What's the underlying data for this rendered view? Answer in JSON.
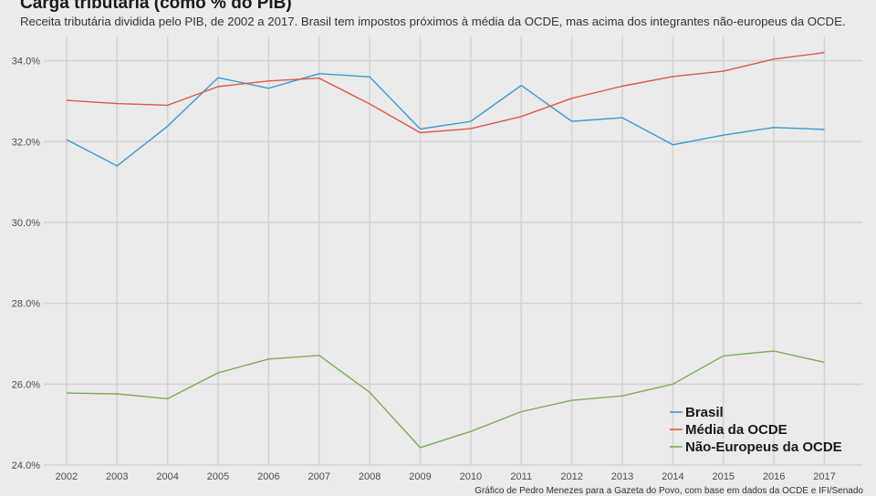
{
  "chart_data": {
    "type": "line",
    "title": "Carga tributária (como % do PIB)",
    "subtitle": "Receita tributária dividida pelo PIB, de 2002 a 2017. Brasil tem impostos próximos à média da OCDE, mas acima dos integrantes não-europeus da OCDE.",
    "caption": "Gráfico de Pedro Menezes para a Gazeta do Povo, com base em dados da OCDE e IFI/Senado",
    "xlabel": "",
    "ylabel": "",
    "x": [
      2002,
      2003,
      2004,
      2005,
      2006,
      2007,
      2008,
      2009,
      2010,
      2011,
      2012,
      2013,
      2014,
      2015,
      2016,
      2017
    ],
    "x_tick_labels": [
      "2002",
      "2003",
      "2004",
      "2005",
      "2006",
      "2007",
      "2008",
      "2009",
      "2010",
      "2011",
      "2012",
      "2013",
      "2014",
      "2015",
      "2016",
      "2017"
    ],
    "y_ticks": [
      24,
      26,
      28,
      30,
      32,
      34
    ],
    "y_tick_labels": [
      "24.0%",
      "26.0%",
      "28.0%",
      "30.0%",
      "32.0%",
      "34.0%"
    ],
    "ylim": [
      24.0,
      34.6
    ],
    "xlim": [
      2001.55,
      2017.75
    ],
    "grid": true,
    "legend_position": "bottom-right",
    "series": [
      {
        "name": "Brasil",
        "color": "#3b9ad3",
        "values": [
          32.05,
          31.4,
          32.38,
          33.58,
          33.32,
          33.68,
          33.6,
          32.31,
          32.5,
          33.39,
          32.5,
          32.59,
          31.92,
          32.16,
          32.35,
          32.3
        ]
      },
      {
        "name": "Média da OCDE",
        "color": "#e05748",
        "values": [
          33.02,
          32.94,
          32.9,
          33.36,
          33.5,
          33.57,
          32.93,
          32.22,
          32.32,
          32.62,
          33.07,
          33.37,
          33.61,
          33.74,
          34.04,
          34.2
        ]
      },
      {
        "name": "Não-Europeus da OCDE",
        "color": "#7cad58",
        "values": [
          25.78,
          25.76,
          25.64,
          26.28,
          26.62,
          26.71,
          25.8,
          24.43,
          24.83,
          25.32,
          25.6,
          25.71,
          26.0,
          26.7,
          26.82,
          26.54
        ]
      }
    ]
  }
}
